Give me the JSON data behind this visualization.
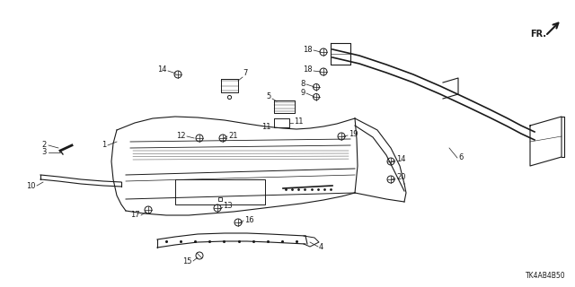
{
  "bg_color": "#ffffff",
  "line_color": "#1a1a1a",
  "title_code": "TK4AB4B50",
  "fr_label": "FR.",
  "figsize": [
    6.4,
    3.2
  ],
  "dpi": 100
}
